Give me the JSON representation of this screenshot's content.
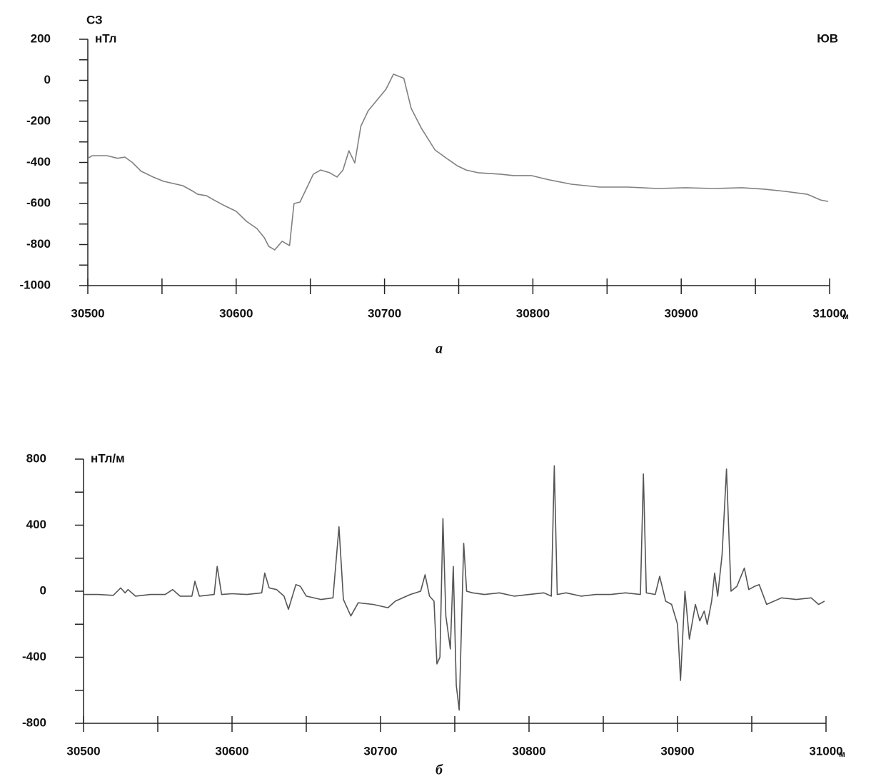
{
  "chart_data": [
    {
      "type": "line",
      "caption": "а",
      "y_label": "нТл",
      "x_label": "м",
      "left_label": "СЗ",
      "right_label": "ЮВ",
      "xlim": [
        30500,
        31000
      ],
      "xticks": [
        30500,
        30600,
        30700,
        30800,
        30900,
        31000
      ],
      "ylim": [
        -1000,
        200
      ],
      "yticks": [
        -1000,
        -800,
        -600,
        -400,
        -200,
        0,
        200
      ],
      "color": "#808080",
      "x": [
        30500,
        30503,
        30513,
        30520,
        30525,
        30530,
        30536,
        30544,
        30551,
        30564,
        30571,
        30574,
        30580,
        30585,
        30592,
        30600,
        30607,
        30614,
        30619,
        30622,
        30626,
        30631,
        30636,
        30639,
        30643,
        30652,
        30657,
        30663,
        30668,
        30672,
        30676,
        30680,
        30684,
        30689,
        30701,
        30706,
        30713,
        30718,
        30725,
        30734,
        30742,
        30749,
        30755,
        30763,
        30778,
        30787,
        30799,
        30811,
        30826,
        30845,
        30864,
        30884,
        30903,
        30922,
        30941,
        30956,
        30970,
        30985,
        30994,
        30999
      ],
      "values": [
        -380,
        -367,
        -367,
        -380,
        -374,
        -400,
        -443,
        -471,
        -492,
        -513,
        -541,
        -555,
        -562,
        -583,
        -610,
        -638,
        -687,
        -722,
        -767,
        -809,
        -826,
        -784,
        -805,
        -600,
        -593,
        -457,
        -437,
        -450,
        -471,
        -437,
        -343,
        -402,
        -224,
        -148,
        -43,
        30,
        10,
        -137,
        -235,
        -339,
        -381,
        -416,
        -437,
        -450,
        -457,
        -464,
        -464,
        -485,
        -506,
        -520,
        -520,
        -527,
        -523,
        -527,
        -523,
        -530,
        -541,
        -555,
        -583,
        -590
      ]
    },
    {
      "type": "line",
      "caption": "б",
      "y_label": "нТл/м",
      "x_label": "м",
      "xlim": [
        30500,
        31000
      ],
      "xticks": [
        30500,
        30600,
        30700,
        30800,
        30900,
        31000
      ],
      "ylim": [
        -800,
        800
      ],
      "yticks": [
        -800,
        -400,
        0,
        400,
        800
      ],
      "color": "#555555",
      "x": [
        30500,
        30510,
        30520,
        30525,
        30528,
        30530,
        30535,
        30545,
        30555,
        30560,
        30565,
        30573,
        30575,
        30578,
        30588,
        30590,
        30593,
        30600,
        30610,
        30620,
        30622,
        30625,
        30630,
        30635,
        30638,
        30643,
        30646,
        30650,
        30660,
        30668,
        30672,
        30675,
        30680,
        30685,
        30695,
        30705,
        30710,
        30720,
        30727,
        30730,
        30733,
        30736,
        30738,
        30740,
        30742,
        30744,
        30747,
        30749,
        30751,
        30753,
        30756,
        30758,
        30762,
        30770,
        30780,
        30790,
        30800,
        30810,
        30815,
        30817,
        30819,
        30825,
        30835,
        30845,
        30855,
        30865,
        30875,
        30877,
        30879,
        30885,
        30888,
        30892,
        30896,
        30900,
        30902,
        30905,
        30908,
        30912,
        30915,
        30918,
        30920,
        30923,
        30925,
        30927,
        30930,
        30933,
        30936,
        30940,
        30945,
        30948,
        30952,
        30955,
        30960,
        30970,
        30980,
        30990,
        30995,
        30999
      ],
      "values": [
        -20,
        -20,
        -25,
        20,
        -10,
        10,
        -30,
        -20,
        -20,
        10,
        -30,
        -30,
        60,
        -30,
        -20,
        150,
        -20,
        -15,
        -20,
        -10,
        110,
        20,
        10,
        -30,
        -110,
        40,
        30,
        -30,
        -50,
        -40,
        390,
        -50,
        -150,
        -70,
        -80,
        -100,
        -60,
        -20,
        0,
        100,
        -30,
        -60,
        -440,
        -400,
        440,
        -150,
        -350,
        150,
        -570,
        -720,
        290,
        0,
        -10,
        -20,
        -10,
        -30,
        -20,
        -10,
        -30,
        760,
        -20,
        -10,
        -30,
        -20,
        -20,
        -10,
        -20,
        710,
        -10,
        -20,
        90,
        -60,
        -80,
        -200,
        -540,
        0,
        -290,
        -80,
        -180,
        -120,
        -200,
        -60,
        110,
        -30,
        220,
        740,
        0,
        30,
        140,
        10,
        30,
        40,
        -80,
        -40,
        -50,
        -40,
        -80,
        -60
      ]
    }
  ]
}
